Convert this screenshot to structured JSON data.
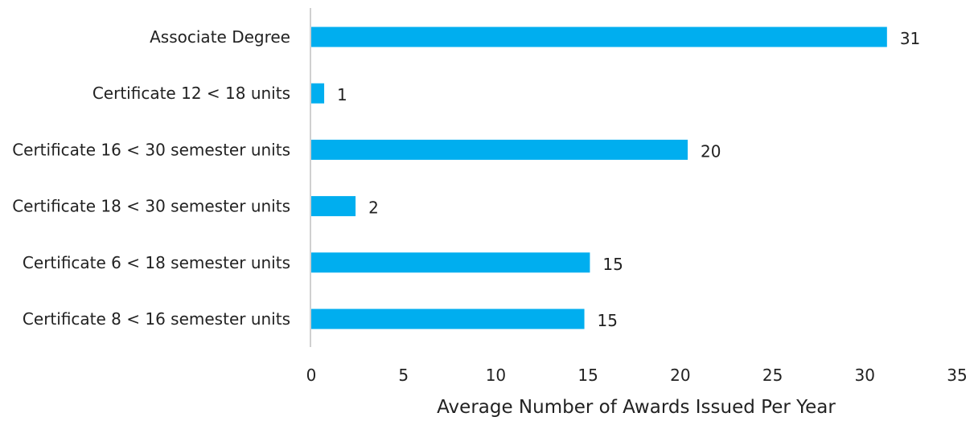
{
  "chart_data": {
    "type": "bar",
    "orientation": "horizontal",
    "categories": [
      "Associate Degree",
      "Certificate 12 < 18 units",
      "Certificate 16 < 30 semester units",
      "Certificate 18 < 30 semester units",
      "Certificate 6 < 18 semester units",
      "Certificate 8 < 16 semester units"
    ],
    "values": [
      31.2,
      0.7,
      20.4,
      2.4,
      15.1,
      14.8
    ],
    "data_labels": [
      "31",
      "1",
      "20",
      "2",
      "15",
      "15"
    ],
    "xlabel": "Average Number of Awards Issued Per Year",
    "ylabel": "",
    "xlim": [
      0,
      35
    ],
    "x_ticks": [
      "0",
      "5",
      "10",
      "15",
      "20",
      "25",
      "30",
      "35"
    ],
    "grid": false,
    "legend": "none",
    "bar_color": "#00AEEF"
  }
}
